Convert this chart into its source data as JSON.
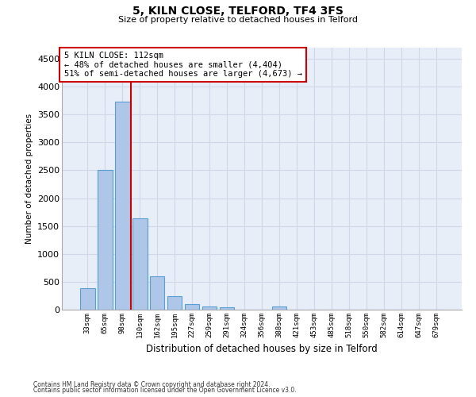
{
  "title": "5, KILN CLOSE, TELFORD, TF4 3FS",
  "subtitle": "Size of property relative to detached houses in Telford",
  "xlabel": "Distribution of detached houses by size in Telford",
  "ylabel": "Number of detached properties",
  "categories": [
    "33sqm",
    "65sqm",
    "98sqm",
    "130sqm",
    "162sqm",
    "195sqm",
    "227sqm",
    "259sqm",
    "291sqm",
    "324sqm",
    "356sqm",
    "388sqm",
    "421sqm",
    "453sqm",
    "485sqm",
    "518sqm",
    "550sqm",
    "582sqm",
    "614sqm",
    "647sqm",
    "679sqm"
  ],
  "values": [
    380,
    2500,
    3730,
    1640,
    600,
    245,
    105,
    60,
    40,
    0,
    0,
    50,
    0,
    0,
    0,
    0,
    0,
    0,
    0,
    0,
    0
  ],
  "bar_color": "#aec6e8",
  "bar_edge_color": "#5a9fd4",
  "vline_index": 2,
  "vline_color": "#cc0000",
  "annotation_text": "5 KILN CLOSE: 112sqm\n← 48% of detached houses are smaller (4,404)\n51% of semi-detached houses are larger (4,673) →",
  "annotation_box_color": "#ffffff",
  "annotation_border_color": "#cc0000",
  "ylim": [
    0,
    4700
  ],
  "yticks": [
    0,
    500,
    1000,
    1500,
    2000,
    2500,
    3000,
    3500,
    4000,
    4500
  ],
  "grid_color": "#d0d8e8",
  "background_color": "#e8eef8",
  "footer_line1": "Contains HM Land Registry data © Crown copyright and database right 2024.",
  "footer_line2": "Contains public sector information licensed under the Open Government Licence v3.0."
}
